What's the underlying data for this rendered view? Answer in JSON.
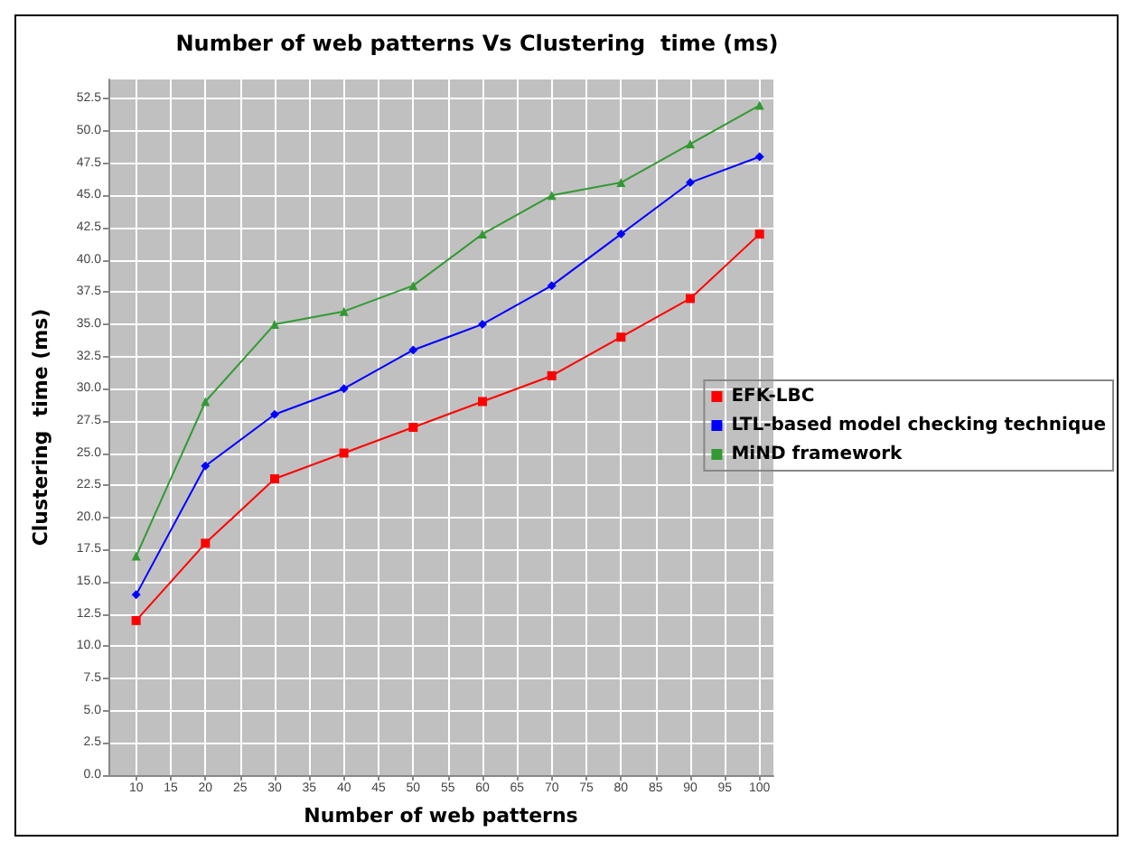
{
  "chart_data": {
    "type": "line",
    "title": "Number of web patterns Vs Clustering  time (ms)",
    "xlabel": "Number of web patterns",
    "ylabel": "Clustering  time (ms)",
    "x": [
      10,
      20,
      30,
      40,
      50,
      60,
      70,
      80,
      90,
      100
    ],
    "series": [
      {
        "name": "EFK-LBC",
        "color": "#ff0000",
        "marker": "square",
        "values": [
          12,
          18,
          23,
          25,
          27,
          29,
          31,
          34,
          37,
          42
        ]
      },
      {
        "name": "LTL-based model checking technique",
        "color": "#0000ff",
        "marker": "diamond",
        "values": [
          14,
          24,
          28,
          30,
          33,
          35,
          38,
          42,
          46,
          48
        ]
      },
      {
        "name": "MiND framework",
        "color": "#339933",
        "marker": "triangle",
        "values": [
          17,
          29,
          35,
          36,
          38,
          42,
          45,
          46,
          49,
          52
        ]
      }
    ],
    "xlim": [
      6,
      102
    ],
    "xticks": [
      10,
      15,
      20,
      25,
      30,
      35,
      40,
      45,
      50,
      55,
      60,
      65,
      70,
      75,
      80,
      85,
      90,
      95,
      100
    ],
    "ylim": [
      0,
      54
    ],
    "yticks": [
      {
        "value": 0,
        "label": "0.0"
      },
      {
        "value": 2.5,
        "label": "2.5"
      },
      {
        "value": 5,
        "label": "5.0"
      },
      {
        "value": 7.5,
        "label": "7.5"
      },
      {
        "value": 10,
        "label": "10.0"
      },
      {
        "value": 12.5,
        "label": "12.5"
      },
      {
        "value": 15,
        "label": "15.0"
      },
      {
        "value": 17.5,
        "label": "17.5"
      },
      {
        "value": 20,
        "label": "20.0"
      },
      {
        "value": 22.5,
        "label": "22.5"
      },
      {
        "value": 25,
        "label": "25.0"
      },
      {
        "value": 27.5,
        "label": "27.5"
      },
      {
        "value": 30,
        "label": "30.0"
      },
      {
        "value": 32.5,
        "label": "32.5"
      },
      {
        "value": 35,
        "label": "35.0"
      },
      {
        "value": 37.5,
        "label": "37.5"
      },
      {
        "value": 40,
        "label": "40.0"
      },
      {
        "value": 42.5,
        "label": "42.5"
      },
      {
        "value": 45,
        "label": "45.0"
      },
      {
        "value": 47.5,
        "label": "47.5"
      },
      {
        "value": 50,
        "label": "50.0"
      },
      {
        "value": 52.5,
        "label": "52.5"
      }
    ],
    "grid": true,
    "legend": "right",
    "line_style": "solid"
  }
}
